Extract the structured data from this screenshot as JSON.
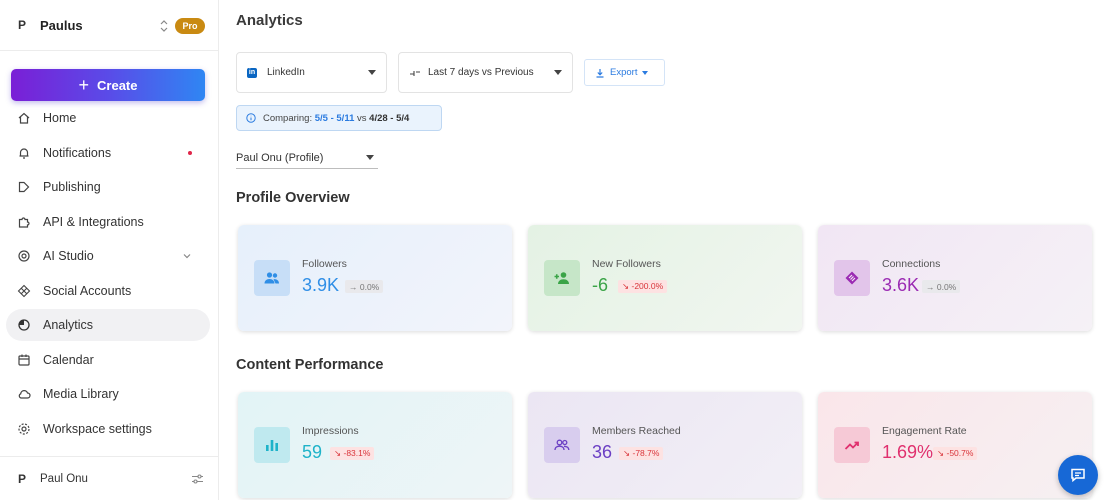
{
  "workspace": {
    "initial": "P",
    "name": "Paulus",
    "badge": "Pro"
  },
  "create_label": "Create",
  "nav": [
    {
      "label": "Home",
      "icon": "home-icon"
    },
    {
      "label": "Notifications",
      "icon": "bell-icon",
      "has_dot": true
    },
    {
      "label": "Publishing",
      "icon": "publish-icon"
    },
    {
      "label": "API & Integrations",
      "icon": "puzzle-icon"
    },
    {
      "label": "AI Studio",
      "icon": "ai-icon",
      "expandable": true
    },
    {
      "label": "Social Accounts",
      "icon": "network-icon"
    },
    {
      "label": "Analytics",
      "icon": "analytics-icon",
      "active": true
    },
    {
      "label": "Calendar",
      "icon": "calendar-icon"
    },
    {
      "label": "Media Library",
      "icon": "cloud-icon"
    },
    {
      "label": "Workspace settings",
      "icon": "gear-icon"
    }
  ],
  "user": {
    "initial": "P",
    "name": "Paul Onu"
  },
  "page_title": "Analytics",
  "filters": {
    "platform": "LinkedIn",
    "date_range": "Last 7 days vs Previous",
    "export_label": "Export"
  },
  "comparing": {
    "prefix": "Comparing:",
    "current": "5/5 - 5/11",
    "vs": "vs",
    "previous": "4/28 - 5/4"
  },
  "profile": "Paul Onu (Profile)",
  "profile_overview_title": "Profile Overview",
  "content_performance_title": "Content Performance",
  "profile_cards": [
    {
      "label": "Followers",
      "value": "3.9K",
      "change": "→ 0.0%",
      "trend": "neutral",
      "accent": "#2f8ee6",
      "icon": "people-icon"
    },
    {
      "label": "New Followers",
      "value": "-6",
      "change": "↘ -200.0%",
      "trend": "down",
      "accent": "#3aa447",
      "icon": "person-add-icon"
    },
    {
      "label": "Connections",
      "value": "3.6K",
      "change": "→ 0.0%",
      "trend": "neutral",
      "accent": "#9b2bb3",
      "icon": "connections-icon"
    }
  ],
  "content_cards": [
    {
      "label": "Impressions",
      "value": "59",
      "change": "↘ -83.1%",
      "trend": "down",
      "accent": "#1fb3c9",
      "icon": "bar-chart-icon"
    },
    {
      "label": "Members Reached",
      "value": "36",
      "change": "↘ -78.7%",
      "trend": "down",
      "accent": "#6b3fc4",
      "icon": "group-icon"
    },
    {
      "label": "Engagement Rate",
      "value": "1.69%",
      "change": "↘ -50.7%",
      "trend": "down",
      "accent": "#e0306e",
      "icon": "trending-up-icon"
    }
  ]
}
